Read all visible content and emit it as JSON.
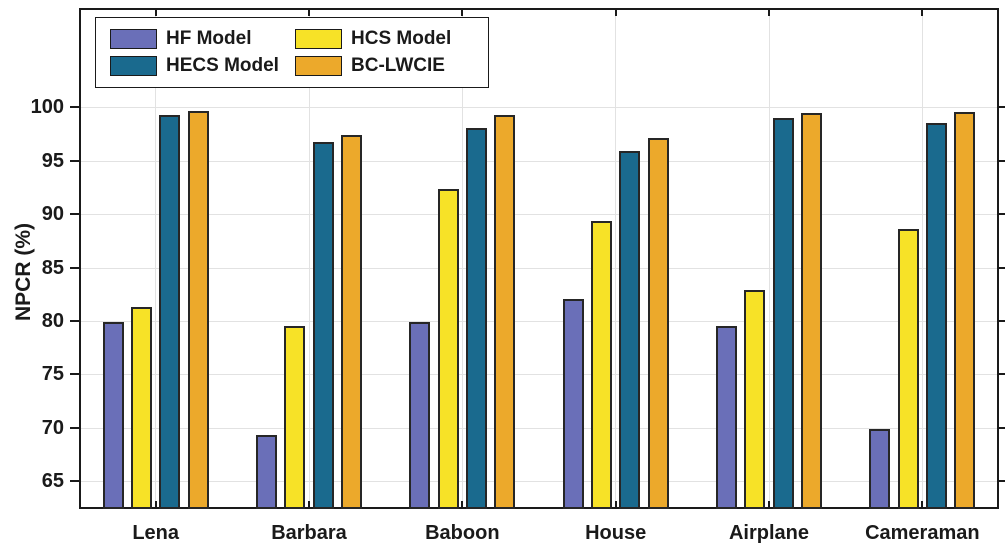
{
  "figure": {
    "background": "#ffffff",
    "axis_color": "#1a1a1a",
    "grid_color": "#e2e2e2"
  },
  "y_axis": {
    "title": "NPCR (%)"
  },
  "legend": {
    "position": "top-left",
    "items": [
      {
        "label": "HF Model",
        "color": "#6a6fb8"
      },
      {
        "label": "HCS Model",
        "color": "#f7e227"
      },
      {
        "label": "HECS Model",
        "color": "#1a6a8e"
      },
      {
        "label": "BC-LWCIE",
        "color": "#eca92b"
      }
    ]
  },
  "chart_data": {
    "type": "bar",
    "title": "",
    "xlabel": "",
    "ylabel": "NPCR (%)",
    "categories": [
      "Lena",
      "Barbara",
      "Baboon",
      "House",
      "Airplane",
      "Cameraman"
    ],
    "series": [
      {
        "name": "HF Model",
        "color": "#6a6fb8",
        "values": [
          79.8,
          69.2,
          79.8,
          82.0,
          79.4,
          69.8
        ]
      },
      {
        "name": "HCS Model",
        "color": "#f7e227",
        "values": [
          81.2,
          79.4,
          92.3,
          89.3,
          82.8,
          88.5
        ]
      },
      {
        "name": "HECS Model",
        "color": "#1a6a8e",
        "values": [
          99.2,
          96.7,
          98.0,
          95.8,
          98.9,
          98.4
        ]
      },
      {
        "name": "BC-LWCIE",
        "color": "#eca92b",
        "values": [
          99.6,
          97.3,
          99.2,
          97.0,
          99.4,
          99.5
        ]
      }
    ],
    "ylim": [
      62.4,
      109.3
    ],
    "yticks": [
      65,
      70,
      75,
      80,
      85,
      90,
      95,
      100
    ],
    "grid": true,
    "bar_edge_color": "#262626",
    "legend_position": "top-left"
  }
}
